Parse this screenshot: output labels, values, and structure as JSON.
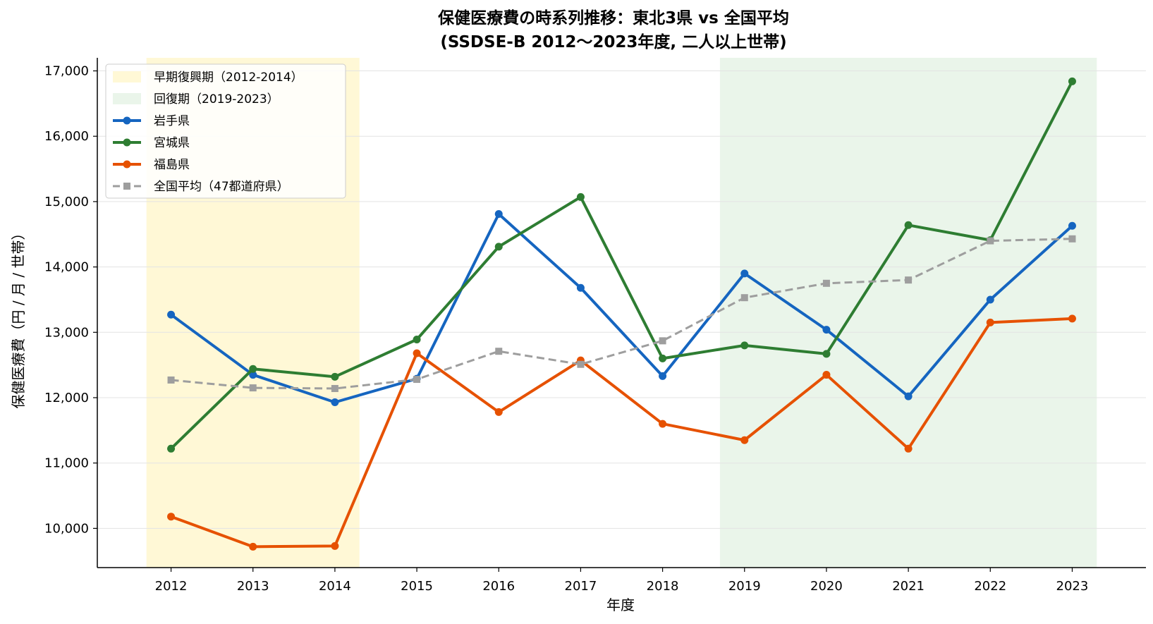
{
  "chart_data": {
    "type": "line",
    "title": "保健医療費の時系列推移：東北3県 vs 全国平均",
    "subtitle": "(SSDSE-B 2012〜2023年度, 二人以上世帯)",
    "xlabel": "年度",
    "ylabel": "保健医療費（円 / 月 / 世帯）",
    "x": [
      2012,
      2013,
      2014,
      2015,
      2016,
      2017,
      2018,
      2019,
      2020,
      2021,
      2022,
      2023
    ],
    "x_tick_labels": [
      "2012",
      "2013",
      "2014",
      "2015",
      "2016",
      "2017",
      "2018",
      "2019",
      "2020",
      "2021",
      "2022",
      "2023"
    ],
    "xlim": [
      2011.1,
      2023.9
    ],
    "ylim": [
      9400,
      17200
    ],
    "y_ticks": [
      10000,
      11000,
      12000,
      13000,
      14000,
      15000,
      16000,
      17000
    ],
    "y_tick_labels": [
      "10,000",
      "11,000",
      "12,000",
      "13,000",
      "14,000",
      "15,000",
      "16,000",
      "17,000"
    ],
    "grid": "horizontal",
    "legend_position": "top-left",
    "bands": [
      {
        "name": "早期復興期（2012-2014）",
        "from": 2011.7,
        "to": 2014.3,
        "color": "#fff8d6"
      },
      {
        "name": "回復期（2019-2023）",
        "from": 2018.7,
        "to": 2023.3,
        "color": "#eaf5ea"
      }
    ],
    "series": [
      {
        "name": "岩手県",
        "color": "#1565c0",
        "style": "solid",
        "marker": "circle",
        "values": [
          13270,
          12350,
          11930,
          12290,
          14810,
          13680,
          12330,
          13900,
          13040,
          12020,
          13500,
          14630
        ]
      },
      {
        "name": "宮城県",
        "color": "#2e7d32",
        "style": "solid",
        "marker": "circle",
        "values": [
          11220,
          12440,
          12320,
          12890,
          14310,
          15070,
          12600,
          12800,
          12670,
          14640,
          14410,
          16840
        ]
      },
      {
        "name": "福島県",
        "color": "#e65100",
        "style": "solid",
        "marker": "circle",
        "values": [
          10180,
          9720,
          9730,
          12680,
          11780,
          12570,
          11600,
          11350,
          12350,
          11220,
          13150,
          13210
        ]
      },
      {
        "name": "全国平均（47都道府県）",
        "color": "#9e9e9e",
        "style": "dashed",
        "marker": "square",
        "values": [
          12270,
          12150,
          12140,
          12280,
          12710,
          12510,
          12870,
          13530,
          13750,
          13800,
          14400,
          14430
        ]
      }
    ]
  }
}
